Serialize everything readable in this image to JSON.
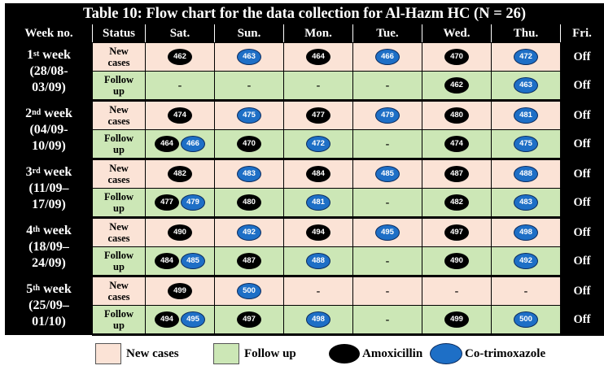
{
  "title": "Table 10: Flow chart for the data collection for Al-Hazm HC (N = 26)",
  "headers": [
    "Week no.",
    "Status",
    "Sat.",
    "Sun.",
    "Mon.",
    "Tue.",
    "Wed.",
    "Thu.",
    "Fri."
  ],
  "weeks": [
    {
      "num": "1",
      "sup": "st",
      "label": " week",
      "dates1": "(28/08-",
      "dates2": "03/09)",
      "new_cases": [
        [
          {
            "id": "462",
            "drug": "amox"
          }
        ],
        [
          {
            "id": "463",
            "drug": "cotri"
          }
        ],
        [
          {
            "id": "464",
            "drug": "amox"
          }
        ],
        [
          {
            "id": "466",
            "drug": "cotri"
          }
        ],
        [
          {
            "id": "470",
            "drug": "amox"
          }
        ],
        [
          {
            "id": "472",
            "drug": "cotri"
          }
        ]
      ],
      "follow_up": [
        [],
        [],
        [],
        [],
        [
          {
            "id": "462",
            "drug": "amox"
          }
        ],
        [
          {
            "id": "463",
            "drug": "cotri"
          }
        ]
      ]
    },
    {
      "num": "2",
      "sup": "nd",
      "label": " week",
      "dates1": "(04/09-",
      "dates2": "10/09)",
      "new_cases": [
        [
          {
            "id": "474",
            "drug": "amox"
          }
        ],
        [
          {
            "id": "475",
            "drug": "cotri"
          }
        ],
        [
          {
            "id": "477",
            "drug": "amox"
          }
        ],
        [
          {
            "id": "479",
            "drug": "cotri"
          }
        ],
        [
          {
            "id": "480",
            "drug": "amox"
          }
        ],
        [
          {
            "id": "481",
            "drug": "cotri"
          }
        ]
      ],
      "follow_up": [
        [
          {
            "id": "464",
            "drug": "amox"
          },
          {
            "id": "466",
            "drug": "cotri"
          }
        ],
        [
          {
            "id": "470",
            "drug": "amox"
          }
        ],
        [
          {
            "id": "472",
            "drug": "cotri"
          }
        ],
        [],
        [
          {
            "id": "474",
            "drug": "amox"
          }
        ],
        [
          {
            "id": "475",
            "drug": "cotri"
          }
        ]
      ]
    },
    {
      "num": "3",
      "sup": "rd",
      "label": " week",
      "dates1": "(11/09–",
      "dates2": "17/09)",
      "new_cases": [
        [
          {
            "id": "482",
            "drug": "amox"
          }
        ],
        [
          {
            "id": "483",
            "drug": "cotri"
          }
        ],
        [
          {
            "id": "484",
            "drug": "amox"
          }
        ],
        [
          {
            "id": "485",
            "drug": "cotri"
          }
        ],
        [
          {
            "id": "487",
            "drug": "amox"
          }
        ],
        [
          {
            "id": "488",
            "drug": "cotri"
          }
        ]
      ],
      "follow_up": [
        [
          {
            "id": "477",
            "drug": "amox"
          },
          {
            "id": "479",
            "drug": "cotri"
          }
        ],
        [
          {
            "id": "480",
            "drug": "amox"
          }
        ],
        [
          {
            "id": "481",
            "drug": "cotri"
          }
        ],
        [],
        [
          {
            "id": "482",
            "drug": "amox"
          }
        ],
        [
          {
            "id": "483",
            "drug": "cotri"
          }
        ]
      ]
    },
    {
      "num": "4",
      "sup": "th",
      "label": " week",
      "dates1": "(18/09–",
      "dates2": "24/09)",
      "new_cases": [
        [
          {
            "id": "490",
            "drug": "amox"
          }
        ],
        [
          {
            "id": "492",
            "drug": "cotri"
          }
        ],
        [
          {
            "id": "494",
            "drug": "amox"
          }
        ],
        [
          {
            "id": "495",
            "drug": "cotri"
          }
        ],
        [
          {
            "id": "497",
            "drug": "amox"
          }
        ],
        [
          {
            "id": "498",
            "drug": "cotri"
          }
        ]
      ],
      "follow_up": [
        [
          {
            "id": "484",
            "drug": "amox"
          },
          {
            "id": "485",
            "drug": "cotri"
          }
        ],
        [
          {
            "id": "487",
            "drug": "amox"
          }
        ],
        [
          {
            "id": "488",
            "drug": "cotri"
          }
        ],
        [],
        [
          {
            "id": "490",
            "drug": "amox"
          }
        ],
        [
          {
            "id": "492",
            "drug": "cotri"
          }
        ]
      ]
    },
    {
      "num": "5",
      "sup": "th",
      "label": " week",
      "dates1": "(25/09–",
      "dates2": "01/10)",
      "new_cases": [
        [
          {
            "id": "499",
            "drug": "amox"
          }
        ],
        [
          {
            "id": "500",
            "drug": "cotri"
          }
        ],
        [],
        [],
        [],
        []
      ],
      "follow_up": [
        [
          {
            "id": "494",
            "drug": "amox"
          },
          {
            "id": "495",
            "drug": "cotri"
          }
        ],
        [
          {
            "id": "497",
            "drug": "amox"
          }
        ],
        [
          {
            "id": "498",
            "drug": "cotri"
          }
        ],
        [],
        [
          {
            "id": "499",
            "drug": "amox"
          }
        ],
        [
          {
            "id": "500",
            "drug": "cotri"
          }
        ]
      ]
    }
  ],
  "status_new_line1": "New",
  "status_new_line2": "cases",
  "status_fu_line1": "Follow",
  "status_fu_line2": "up",
  "empty_mark": "-",
  "off_label": "Off",
  "legend": {
    "new_cases": "New cases",
    "follow_up": "Follow up",
    "amox": "Amoxicillin",
    "cotri": "Co-trimoxazole"
  },
  "colors": {
    "new_cases_bg": "#fbe3d6",
    "follow_up_bg": "#cce7b6",
    "amoxicillin": "#000000",
    "co_trimoxazole": "#1e6fc6"
  }
}
